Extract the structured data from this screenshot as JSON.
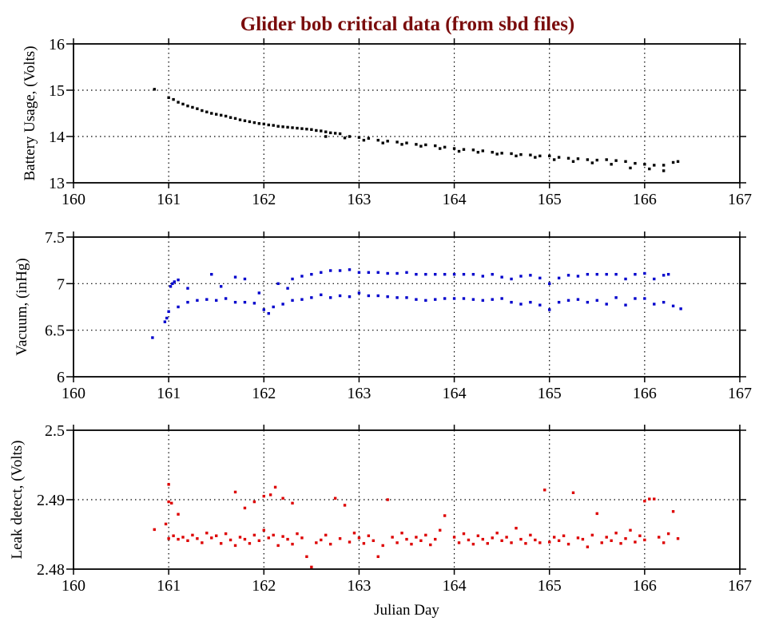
{
  "title": "Glider bob critical data (from sbd files)",
  "colors": {
    "title": "#7a0c0c",
    "battery": "#000000",
    "vacuum": "#0000cc",
    "leak": "#dd0000",
    "axis": "#000000",
    "grid": "#000000"
  },
  "chart_data": [
    {
      "type": "scatter",
      "ylabel": "Battery Usage, (Volts)",
      "xlabel": "",
      "xlim": [
        160,
        167
      ],
      "ylim": [
        13,
        16
      ],
      "xticks": [
        "160",
        "161",
        "162",
        "163",
        "164",
        "165",
        "166",
        "167"
      ],
      "yticks": [
        "13",
        "14",
        "15",
        "16"
      ],
      "grid": "dotted",
      "color": "#000000",
      "x": [
        160.85,
        161.0,
        161.05,
        161.1,
        161.15,
        161.2,
        161.25,
        161.3,
        161.35,
        161.4,
        161.45,
        161.5,
        161.55,
        161.6,
        161.65,
        161.7,
        161.75,
        161.8,
        161.85,
        161.9,
        161.95,
        162.0,
        162.05,
        162.1,
        162.15,
        162.2,
        162.25,
        162.3,
        162.35,
        162.4,
        162.45,
        162.5,
        162.55,
        162.6,
        162.65,
        162.7,
        162.75,
        162.8,
        162.9,
        163.0,
        163.1,
        163.2,
        163.3,
        163.4,
        163.5,
        163.6,
        163.7,
        163.8,
        163.9,
        164.0,
        164.1,
        164.2,
        164.3,
        164.4,
        164.5,
        164.6,
        164.7,
        164.8,
        164.9,
        165.0,
        165.1,
        165.2,
        165.3,
        165.4,
        165.5,
        165.6,
        165.7,
        165.8,
        165.9,
        166.0,
        166.1,
        166.2,
        166.3,
        166.35,
        162.65,
        162.85,
        163.05,
        163.25,
        163.45,
        163.65,
        163.85,
        164.05,
        164.25,
        164.45,
        164.65,
        164.85,
        165.05,
        165.25,
        165.45,
        165.65,
        165.85,
        166.05,
        166.2
      ],
      "y": [
        15.02,
        14.84,
        14.8,
        14.74,
        14.7,
        14.66,
        14.63,
        14.6,
        14.56,
        14.53,
        14.5,
        14.48,
        14.46,
        14.44,
        14.41,
        14.39,
        14.36,
        14.34,
        14.32,
        14.3,
        14.28,
        14.27,
        14.25,
        14.24,
        14.22,
        14.21,
        14.2,
        14.19,
        14.18,
        14.17,
        14.16,
        14.15,
        14.13,
        14.12,
        14.1,
        14.08,
        14.07,
        14.06,
        14.0,
        13.98,
        13.96,
        13.92,
        13.9,
        13.88,
        13.86,
        13.83,
        13.82,
        13.8,
        13.77,
        13.74,
        13.72,
        13.71,
        13.69,
        13.66,
        13.64,
        13.63,
        13.61,
        13.6,
        13.58,
        13.58,
        13.55,
        13.53,
        13.52,
        13.5,
        13.49,
        13.5,
        13.48,
        13.46,
        13.42,
        13.4,
        13.38,
        13.38,
        13.44,
        13.46,
        14.0,
        13.97,
        13.92,
        13.86,
        13.83,
        13.79,
        13.74,
        13.68,
        13.66,
        13.62,
        13.58,
        13.55,
        13.5,
        13.46,
        13.43,
        13.4,
        13.32,
        13.3,
        13.26
      ]
    },
    {
      "type": "scatter",
      "ylabel": "Vacuum, (inHg)",
      "xlabel": "",
      "xlim": [
        160,
        167
      ],
      "ylim": [
        6,
        7.5
      ],
      "xticks": [
        "160",
        "161",
        "162",
        "163",
        "164",
        "165",
        "166",
        "167"
      ],
      "yticks": [
        "6",
        "6.5",
        "7",
        "7.5"
      ],
      "grid": "dotted",
      "color": "#0000cc",
      "x": [
        160.83,
        160.96,
        160.98,
        161.0,
        161.02,
        161.04,
        161.06,
        161.1,
        161.2,
        161.45,
        161.55,
        161.7,
        161.8,
        161.95,
        162.15,
        162.25,
        162.3,
        162.4,
        162.5,
        162.6,
        162.7,
        162.8,
        162.9,
        163.0,
        163.1,
        163.2,
        163.3,
        163.4,
        163.5,
        163.6,
        163.7,
        163.8,
        163.9,
        164.0,
        164.1,
        164.2,
        164.3,
        164.4,
        164.5,
        164.6,
        164.7,
        164.8,
        164.9,
        165.0,
        165.1,
        165.2,
        165.3,
        165.4,
        165.5,
        165.6,
        165.7,
        165.8,
        165.9,
        166.0,
        166.1,
        166.2,
        166.25,
        161.1,
        161.2,
        161.3,
        161.4,
        161.5,
        161.6,
        161.7,
        161.8,
        161.9,
        162.0,
        162.05,
        162.1,
        162.2,
        162.3,
        162.4,
        162.5,
        162.6,
        162.7,
        162.8,
        162.9,
        163.0,
        163.1,
        163.2,
        163.3,
        163.4,
        163.5,
        163.6,
        163.7,
        163.8,
        163.9,
        164.0,
        164.1,
        164.2,
        164.3,
        164.4,
        164.5,
        164.6,
        164.7,
        164.8,
        164.9,
        165.0,
        165.1,
        165.2,
        165.3,
        165.4,
        165.5,
        165.6,
        165.7,
        165.8,
        165.9,
        166.0,
        166.1,
        166.2,
        166.3,
        166.38
      ],
      "y": [
        6.42,
        6.59,
        6.63,
        6.7,
        6.97,
        7.0,
        7.02,
        7.04,
        6.95,
        7.1,
        6.97,
        7.07,
        7.05,
        6.9,
        7.0,
        6.95,
        7.05,
        7.08,
        7.1,
        7.12,
        7.14,
        7.14,
        7.15,
        7.12,
        7.12,
        7.12,
        7.11,
        7.11,
        7.12,
        7.1,
        7.1,
        7.1,
        7.1,
        7.1,
        7.1,
        7.1,
        7.08,
        7.1,
        7.07,
        7.05,
        7.08,
        7.09,
        7.06,
        7.0,
        7.06,
        7.09,
        7.08,
        7.1,
        7.1,
        7.1,
        7.1,
        7.05,
        7.1,
        7.11,
        7.05,
        7.09,
        7.1,
        6.75,
        6.8,
        6.82,
        6.83,
        6.82,
        6.84,
        6.8,
        6.8,
        6.79,
        6.72,
        6.68,
        6.75,
        6.78,
        6.82,
        6.83,
        6.85,
        6.88,
        6.85,
        6.87,
        6.86,
        6.9,
        6.87,
        6.87,
        6.86,
        6.85,
        6.85,
        6.83,
        6.82,
        6.83,
        6.84,
        6.84,
        6.84,
        6.83,
        6.82,
        6.83,
        6.84,
        6.8,
        6.78,
        6.8,
        6.77,
        6.72,
        6.8,
        6.82,
        6.83,
        6.8,
        6.82,
        6.78,
        6.85,
        6.77,
        6.84,
        6.84,
        6.78,
        6.8,
        6.76,
        6.73
      ]
    },
    {
      "type": "scatter",
      "ylabel": "Leak detect, (Volts)",
      "xlabel": "Julian Day",
      "xlim": [
        160,
        167
      ],
      "ylim": [
        2.48,
        2.5
      ],
      "xticks": [
        "160",
        "161",
        "162",
        "163",
        "164",
        "165",
        "166",
        "167"
      ],
      "yticks": [
        "2.48",
        "2.49",
        "2.5"
      ],
      "grid": "dotted",
      "color": "#dd0000",
      "x": [
        160.85,
        160.97,
        161.0,
        161.0,
        161.03,
        161.1,
        161.7,
        161.8,
        161.9,
        162.0,
        162.07,
        162.12,
        162.2,
        162.3,
        162.5,
        162.75,
        162.85,
        163.3,
        163.9,
        164.95,
        165.25,
        165.5,
        166.0,
        166.05,
        166.1,
        166.3,
        162.45,
        163.2,
        161.0,
        161.05,
        161.1,
        161.15,
        161.2,
        161.25,
        161.3,
        161.35,
        161.4,
        161.45,
        161.5,
        161.55,
        161.6,
        161.65,
        161.7,
        161.75,
        161.8,
        161.85,
        161.9,
        161.95,
        162.0,
        162.05,
        162.1,
        162.15,
        162.2,
        162.25,
        162.3,
        162.35,
        162.4,
        162.55,
        162.6,
        162.65,
        162.7,
        162.8,
        162.9,
        162.95,
        163.0,
        163.05,
        163.1,
        163.15,
        163.25,
        163.35,
        163.4,
        163.45,
        163.5,
        163.55,
        163.6,
        163.65,
        163.7,
        163.75,
        163.8,
        163.85,
        164.0,
        164.05,
        164.1,
        164.15,
        164.2,
        164.25,
        164.3,
        164.35,
        164.4,
        164.45,
        164.5,
        164.55,
        164.6,
        164.65,
        164.7,
        164.75,
        164.8,
        164.85,
        164.9,
        165.0,
        165.05,
        165.1,
        165.15,
        165.2,
        165.3,
        165.35,
        165.4,
        165.45,
        165.55,
        165.6,
        165.65,
        165.7,
        165.75,
        165.8,
        165.85,
        165.9,
        165.95,
        166.0,
        166.15,
        166.2,
        166.25,
        166.35
      ],
      "y": [
        2.4857,
        2.4865,
        2.4922,
        2.4897,
        2.4895,
        2.4879,
        2.4911,
        2.4888,
        2.4897,
        2.4905,
        2.4907,
        2.4918,
        2.4902,
        2.4895,
        2.4803,
        2.4902,
        2.4892,
        2.49,
        2.4877,
        2.4914,
        2.491,
        2.488,
        2.4898,
        2.4901,
        2.4901,
        2.4883,
        2.4818,
        2.4818,
        2.4844,
        2.4848,
        2.4843,
        2.4846,
        2.4841,
        2.4849,
        2.4844,
        2.4838,
        2.4852,
        2.4845,
        2.4848,
        2.4837,
        2.4851,
        2.4842,
        2.4834,
        2.4846,
        2.4843,
        2.4837,
        2.4849,
        2.4841,
        2.4856,
        2.4845,
        2.4849,
        2.4834,
        2.4847,
        2.4843,
        2.4836,
        2.4851,
        2.4845,
        2.4838,
        2.4842,
        2.4849,
        2.4836,
        2.4844,
        2.4839,
        2.4852,
        2.4845,
        2.4837,
        2.4848,
        2.4841,
        2.4834,
        2.4846,
        2.4838,
        2.4852,
        2.4843,
        2.4836,
        2.4846,
        2.4841,
        2.4849,
        2.4835,
        2.4843,
        2.4856,
        2.4846,
        2.4838,
        2.4851,
        2.4842,
        2.4836,
        2.4848,
        2.4843,
        2.4837,
        2.4845,
        2.4852,
        2.4841,
        2.4846,
        2.4838,
        2.4859,
        2.4843,
        2.4837,
        2.4849,
        2.4842,
        2.4838,
        2.4839,
        2.4846,
        2.4841,
        2.4848,
        2.4836,
        2.4845,
        2.4843,
        2.4832,
        2.4849,
        2.4838,
        2.4846,
        2.4841,
        2.4852,
        2.4837,
        2.4844,
        2.4856,
        2.4839,
        2.4848,
        2.4842,
        2.4846,
        2.4838,
        2.4851,
        2.4844
      ]
    }
  ]
}
